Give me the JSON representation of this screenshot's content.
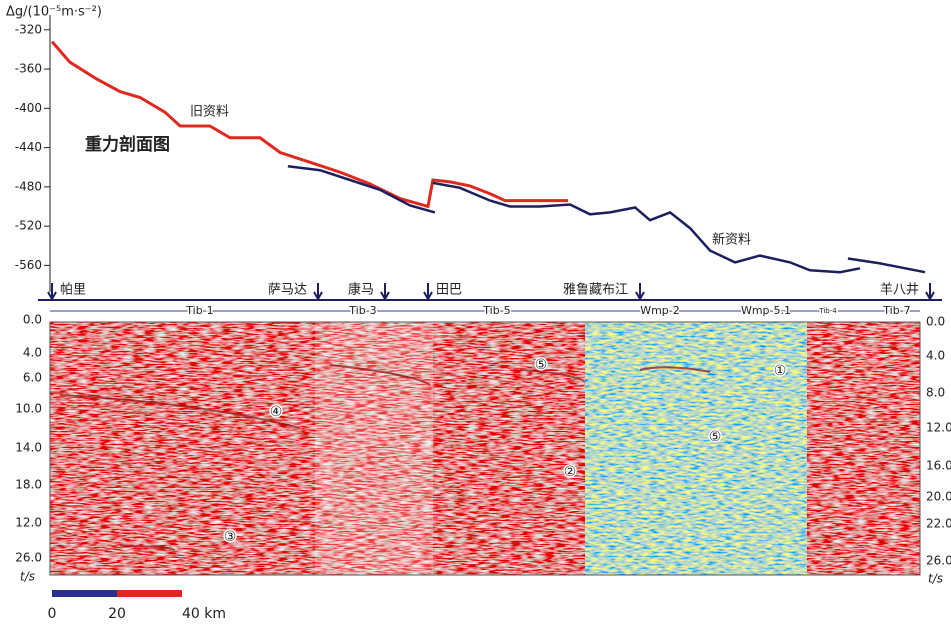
{
  "chart_data": {
    "type": "line",
    "title": "重力剖面图",
    "y_label": "Δg/(10⁻⁵m·s⁻²)",
    "ylim": [
      -580,
      -310
    ],
    "yticks": [
      -320,
      -360,
      -400,
      -440,
      -480,
      -520,
      -560
    ],
    "xlim": [
      0,
      270
    ],
    "series": [
      {
        "name": "旧资料",
        "color": "#e0281e",
        "x": [
          0,
          5.5,
          13.2,
          20.9,
          27.1,
          34.8,
          39.4,
          48.6,
          54.8,
          64,
          70.2,
          79.4,
          88.6,
          97.8,
          107.1,
          115.7,
          117.2,
          122.5,
          128.6,
          134.8,
          139.4,
          150.2,
          158.8
        ],
        "values": [
          -332,
          -353,
          -369,
          -383,
          -389,
          -404,
          -418,
          -418,
          -430,
          -430,
          -445,
          -455,
          -465,
          -477,
          -492,
          -500,
          -473,
          -475,
          -479,
          -487,
          -494,
          -494,
          -494
        ]
      },
      {
        "name": "新资料",
        "color": "#1c1f5e",
        "x": [
          72.6,
          82.5,
          91.7,
          100.9,
          110.2,
          117.8,
          null,
          117.2,
          125.5,
          134.8,
          140.9,
          150.2,
          159.4,
          165.5,
          171.7,
          179.4,
          184,
          190.2,
          196.3,
          202.5,
          210.2,
          217.8,
          227.1,
          233.2,
          242.5,
          248.6,
          null,
          244.9,
          254.8,
          268.6
        ],
        "values": [
          -459,
          -463,
          -473,
          -483,
          -499,
          -506,
          null,
          -476,
          -481,
          -494,
          -500,
          -500,
          -498,
          -508,
          -506,
          -501,
          -514,
          -506,
          -522,
          -545,
          -557,
          -550,
          -557,
          -565,
          -567,
          -563,
          null,
          -553,
          -558,
          -567
        ]
      }
    ],
    "scale_bar": {
      "ticks": [
        0,
        20,
        {
          "value": 40,
          "label": "40 km"
        }
      ]
    }
  },
  "seismic": {
    "stations": [
      "帕里",
      "萨马达",
      "康马",
      "田巴",
      "雅鲁藏布江",
      "羊八井"
    ],
    "segments": [
      "Tib-1",
      "Tib-3",
      "Tib-5",
      "Wmp-2",
      "Wmp-5.1",
      "Tib-4",
      "Tib-7"
    ],
    "left_time_labels": [
      "0.0",
      "4.0",
      "6.0",
      "10.0",
      "14.0",
      "18.0",
      "12.0",
      "26.0"
    ],
    "right_time_labels": [
      "0.0",
      "4.0",
      "8.0",
      "12.0",
      "16.0",
      "20.0",
      "22.0",
      "26.0"
    ],
    "time_unit": "t/s",
    "markers": [
      "④",
      "③",
      "⑤",
      "②",
      "①",
      "⑤"
    ]
  }
}
